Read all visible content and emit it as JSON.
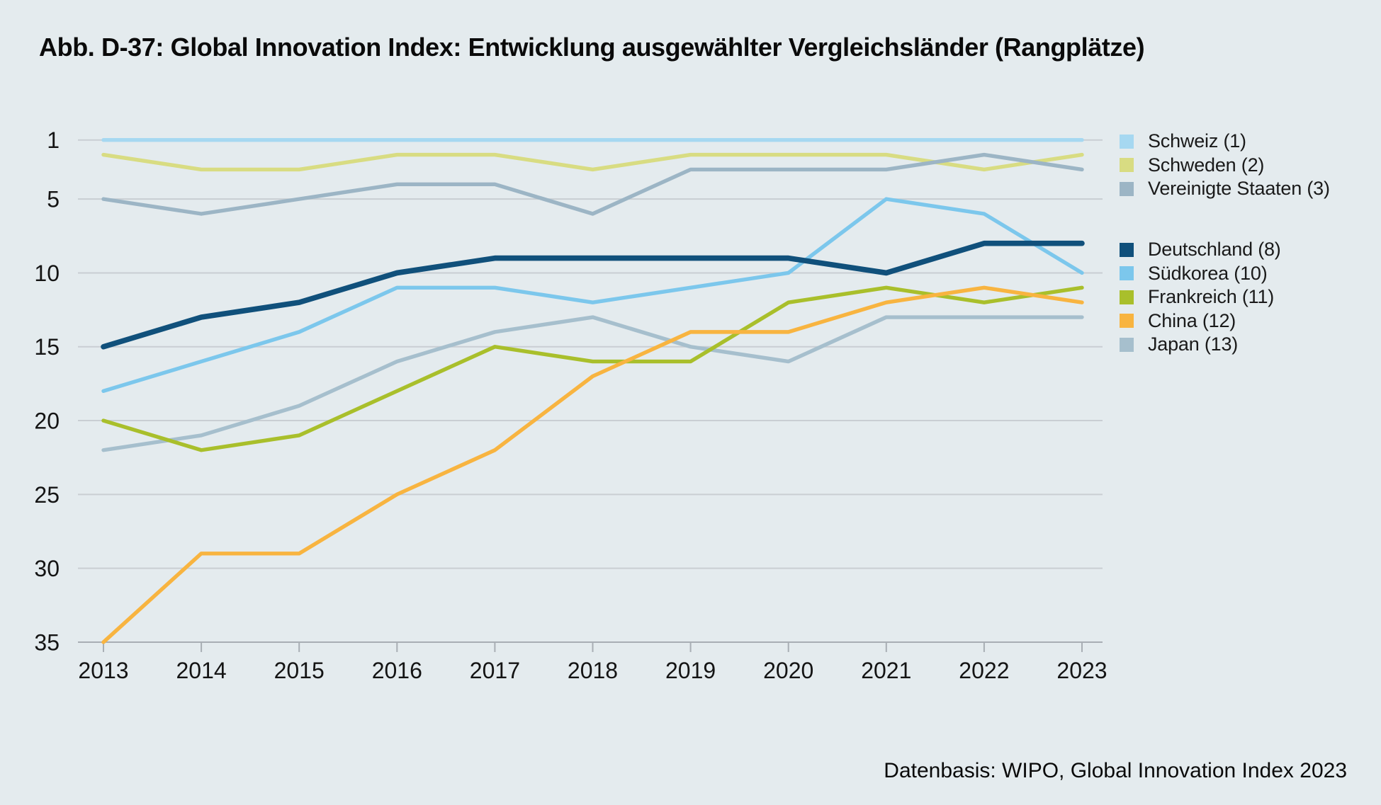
{
  "title": "Abb. D-37: Global Innovation Index: Entwicklung ausgewählter Vergleichsländer (Rangplätze)",
  "source_note": "Datenbasis: WIPO, Global Innovation Index 2023",
  "colors": {
    "background": "#e4ebee",
    "gridline": "#c9ced3",
    "axis": "#a8aeb4",
    "text": "#141414"
  },
  "chart_data": {
    "type": "line",
    "title": "Abb. D-37: Global Innovation Index: Entwicklung ausgewählter Vergleichsländer (Rangplätze)",
    "x": [
      2013,
      2014,
      2015,
      2016,
      2017,
      2018,
      2019,
      2020,
      2021,
      2022,
      2023
    ],
    "xlabel": "",
    "ylabel": "",
    "y_axis": {
      "inverted": true,
      "ticks": [
        1,
        5,
        10,
        15,
        20,
        25,
        30,
        35
      ],
      "range": [
        1,
        35
      ]
    },
    "grid": true,
    "legend_position": "right",
    "series": [
      {
        "name": "Schweiz",
        "legend": "Schweiz (1)",
        "color": "#a6d8f1",
        "emphasis": false,
        "values": [
          1,
          1,
          1,
          1,
          1,
          1,
          1,
          1,
          1,
          1,
          1
        ]
      },
      {
        "name": "Schweden",
        "legend": "Schweden (2)",
        "color": "#d8dc82",
        "emphasis": false,
        "values": [
          2,
          3,
          3,
          2,
          2,
          3,
          2,
          2,
          2,
          3,
          2
        ]
      },
      {
        "name": "Vereinigte Staaten",
        "legend": "Vereinigte Staaten (3)",
        "color": "#9cb5c5",
        "emphasis": false,
        "values": [
          5,
          6,
          5,
          4,
          4,
          6,
          3,
          3,
          3,
          2,
          3
        ]
      },
      {
        "name": "Deutschland",
        "legend": "Deutschland (8)",
        "color": "#10507b",
        "emphasis": true,
        "values": [
          15,
          13,
          12,
          10,
          9,
          9,
          9,
          9,
          10,
          8,
          8
        ]
      },
      {
        "name": "Südkorea",
        "legend": "Südkorea (10)",
        "color": "#7cc7ec",
        "emphasis": false,
        "values": [
          18,
          16,
          14,
          11,
          11,
          12,
          11,
          10,
          5,
          6,
          10
        ]
      },
      {
        "name": "Frankreich",
        "legend": "Frankreich (11)",
        "color": "#a9bf2b",
        "emphasis": false,
        "values": [
          20,
          22,
          21,
          18,
          15,
          16,
          16,
          12,
          11,
          12,
          11
        ]
      },
      {
        "name": "China",
        "legend": "China (12)",
        "color": "#f8b440",
        "emphasis": false,
        "values": [
          35,
          29,
          29,
          25,
          22,
          17,
          14,
          14,
          12,
          11,
          12
        ]
      },
      {
        "name": "Japan",
        "legend": "Japan (13)",
        "color": "#a6bfcd",
        "emphasis": false,
        "values": [
          22,
          21,
          19,
          16,
          14,
          13,
          15,
          16,
          13,
          13,
          13
        ]
      }
    ],
    "legend_groups": [
      [
        0,
        1,
        2
      ],
      [
        3,
        4,
        5,
        6,
        7
      ]
    ]
  }
}
